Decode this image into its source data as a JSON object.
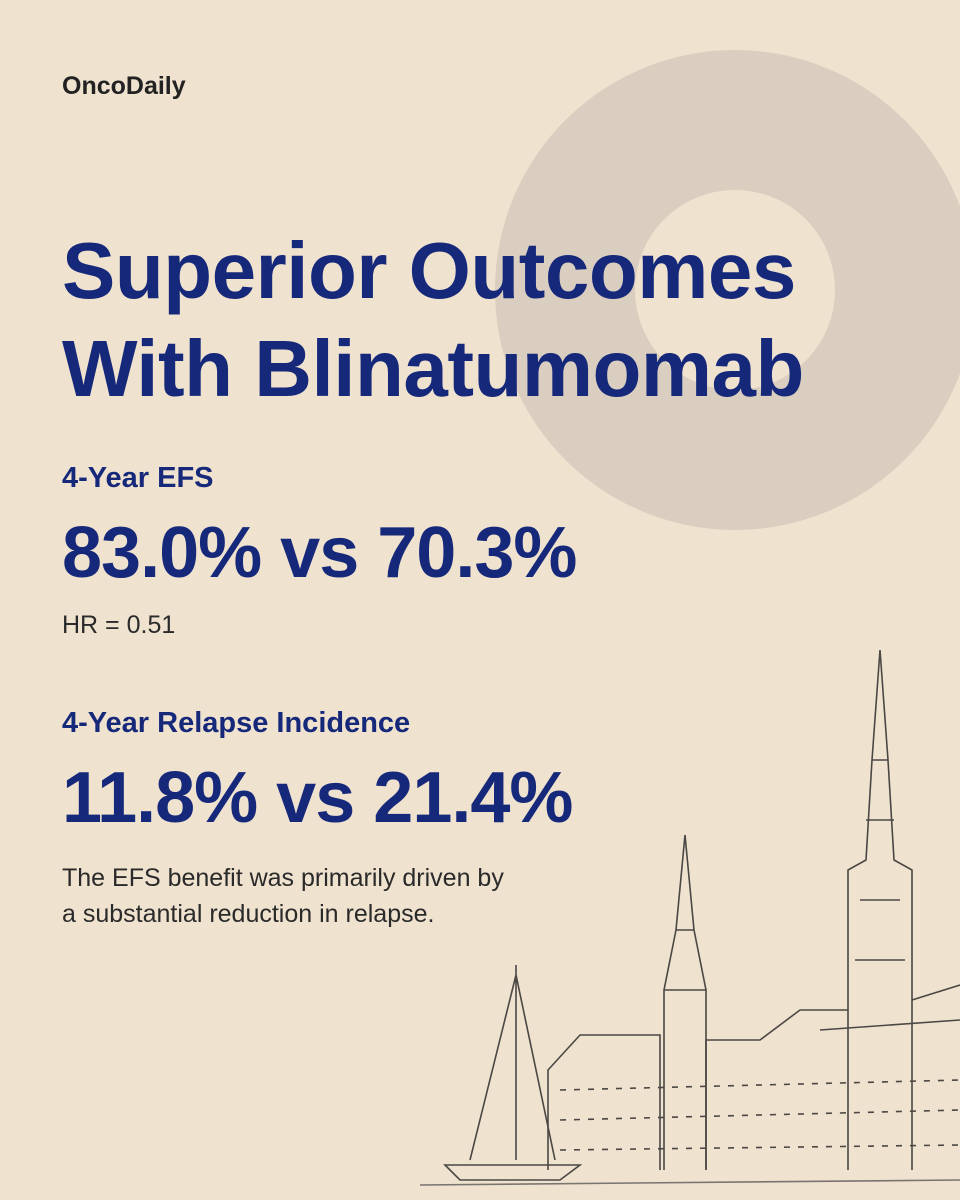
{
  "header": {
    "brand": "OncoDaily"
  },
  "title_lines": [
    "Superior Outcomes",
    "With Blinatumomab"
  ],
  "sections": [
    {
      "heading": "4-Year EFS",
      "result": "83.0% vs 70.3%",
      "note_lines": [
        "HR = 0.51"
      ]
    },
    {
      "heading": "4-Year Relapse Incidence",
      "result": "11.8% vs 21.4%",
      "note_lines": [
        "The EFS benefit was primarily driven by",
        "a substantial reduction in relapse."
      ]
    }
  ]
}
